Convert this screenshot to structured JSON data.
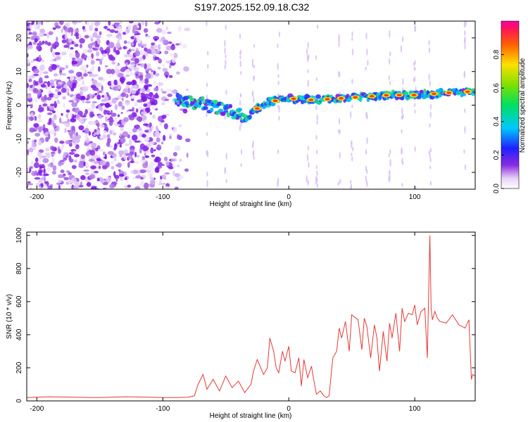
{
  "title": "S197.2025.152.09.18.C32",
  "chart_data": [
    {
      "type": "heatmap",
      "xlabel": "Height of straight line (km)",
      "ylabel": "Frequency (Hz)",
      "xlim": [
        -208,
        148
      ],
      "ylim": [
        -25,
        25
      ],
      "x_ticks": [
        -200,
        -100,
        0,
        100
      ],
      "y_ticks": [
        -20,
        -10,
        0,
        10,
        20
      ],
      "colorbar": {
        "label": "Normalized spectral amplitude",
        "range": [
          0,
          1
        ],
        "ticks": [
          0.0,
          0.2,
          0.4,
          0.6,
          0.8
        ]
      },
      "noise_region_x": [
        -208,
        -90
      ],
      "signal_trend": {
        "x": [
          -90,
          -70,
          -50,
          -35,
          -25,
          -15,
          0,
          20,
          40,
          60,
          80,
          100,
          120,
          140,
          148
        ],
        "y": [
          1.5,
          0.5,
          -1.5,
          -3.5,
          -1,
          1,
          2,
          1.5,
          2,
          2.5,
          3,
          3,
          3.5,
          4,
          4
        ]
      }
    },
    {
      "type": "line",
      "xlabel": "Height of straight line (km)",
      "ylabel": "SNR (10 * v/v)",
      "xlim": [
        -208,
        148
      ],
      "ylim": [
        0,
        1020
      ],
      "x_ticks": [
        -200,
        -100,
        0,
        100
      ],
      "y_ticks": [
        0,
        200,
        400,
        600,
        800,
        1000
      ],
      "color": "#e53935",
      "series": [
        {
          "x": [
            -208,
            -190,
            -170,
            -150,
            -130,
            -110,
            -100,
            -90,
            -80,
            -75,
            -72,
            -68,
            -65,
            -60,
            -55,
            -50,
            -45,
            -40,
            -35,
            -30,
            -28,
            -25,
            -20,
            -17,
            -15,
            -12,
            -10,
            -8,
            -5,
            -3,
            0,
            2,
            5,
            8,
            10,
            12,
            15,
            18,
            20,
            22,
            25,
            28,
            30,
            32,
            35,
            38,
            40,
            42,
            45,
            48,
            50,
            55,
            58,
            60,
            62,
            65,
            68,
            70,
            72,
            75,
            78,
            80,
            82,
            85,
            88,
            90,
            92,
            95,
            98,
            100,
            102,
            105,
            108,
            110,
            112,
            113,
            114,
            116,
            118,
            120,
            125,
            130,
            135,
            140,
            143,
            145,
            146,
            148
          ],
          "y": [
            20,
            25,
            22,
            20,
            25,
            22,
            20,
            20,
            22,
            30,
            100,
            160,
            70,
            130,
            60,
            150,
            80,
            120,
            50,
            100,
            180,
            250,
            160,
            200,
            380,
            300,
            200,
            170,
            300,
            240,
            330,
            180,
            170,
            260,
            90,
            250,
            140,
            210,
            120,
            40,
            60,
            30,
            20,
            30,
            260,
            300,
            440,
            380,
            480,
            300,
            520,
            490,
            310,
            500,
            450,
            260,
            460,
            380,
            180,
            420,
            240,
            470,
            380,
            530,
            300,
            560,
            480,
            530,
            520,
            580,
            460,
            540,
            560,
            260,
            1000,
            560,
            490,
            540,
            500,
            480,
            470,
            520,
            460,
            440,
            490,
            130,
            160,
            150
          ]
        }
      ]
    }
  ]
}
